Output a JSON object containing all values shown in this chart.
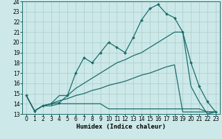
{
  "xlabel": "Humidex (Indice chaleur)",
  "background_color": "#cce8e8",
  "grid_color": "#aacccc",
  "line_color": "#1a6b6b",
  "xlim_min": -0.5,
  "xlim_max": 23.5,
  "ylim_min": 13,
  "ylim_max": 24,
  "x_ticks": [
    0,
    1,
    2,
    3,
    4,
    5,
    6,
    7,
    8,
    9,
    10,
    11,
    12,
    13,
    14,
    15,
    16,
    17,
    18,
    19,
    20,
    21,
    22,
    23
  ],
  "y_ticks": [
    13,
    14,
    15,
    16,
    17,
    18,
    19,
    20,
    21,
    22,
    23,
    24
  ],
  "line1_x": [
    0,
    1,
    2,
    3,
    4,
    5,
    6,
    7,
    8,
    9,
    10,
    11,
    12,
    13,
    14,
    15,
    16,
    17,
    18,
    19,
    20,
    21,
    22,
    23
  ],
  "line1_y": [
    14.8,
    13.3,
    13.8,
    14.0,
    14.1,
    14.8,
    17.0,
    18.5,
    18.0,
    19.0,
    20.0,
    19.5,
    19.0,
    20.5,
    22.2,
    23.3,
    23.7,
    22.8,
    22.4,
    21.0,
    18.0,
    15.7,
    14.2,
    13.2
  ],
  "line2_x": [
    0,
    1,
    2,
    3,
    4,
    5,
    6,
    7,
    8,
    9,
    10,
    11,
    12,
    13,
    14,
    15,
    16,
    17,
    18,
    19,
    20,
    21,
    22,
    23
  ],
  "line2_y": [
    14.8,
    13.3,
    13.8,
    14.0,
    14.8,
    14.8,
    15.5,
    16.0,
    16.5,
    17.0,
    17.5,
    18.0,
    18.3,
    18.7,
    19.0,
    19.5,
    20.0,
    20.5,
    21.0,
    21.0,
    15.7,
    14.2,
    13.0,
    13.2
  ],
  "line3_x": [
    0,
    1,
    2,
    3,
    4,
    5,
    6,
    7,
    8,
    9,
    10,
    11,
    12,
    13,
    14,
    15,
    16,
    17,
    18,
    19,
    20,
    21,
    22,
    23
  ],
  "line3_y": [
    14.8,
    13.3,
    13.8,
    14.0,
    14.3,
    14.5,
    14.8,
    15.0,
    15.3,
    15.5,
    15.8,
    16.0,
    16.2,
    16.5,
    16.8,
    17.0,
    17.3,
    17.6,
    17.8,
    13.2,
    13.2,
    13.2,
    13.2,
    13.2
  ],
  "line4_x": [
    0,
    1,
    2,
    3,
    4,
    5,
    6,
    7,
    8,
    9,
    10,
    11,
    12,
    13,
    14,
    15,
    16,
    17,
    18,
    19,
    20,
    21,
    22,
    23
  ],
  "line4_y": [
    14.8,
    13.3,
    13.8,
    13.8,
    14.0,
    14.0,
    14.0,
    14.0,
    14.0,
    14.0,
    13.5,
    13.5,
    13.5,
    13.5,
    13.5,
    13.5,
    13.5,
    13.5,
    13.5,
    13.5,
    13.5,
    13.5,
    13.2,
    13.2
  ],
  "tick_fontsize": 5.5,
  "xlabel_fontsize": 6.5
}
